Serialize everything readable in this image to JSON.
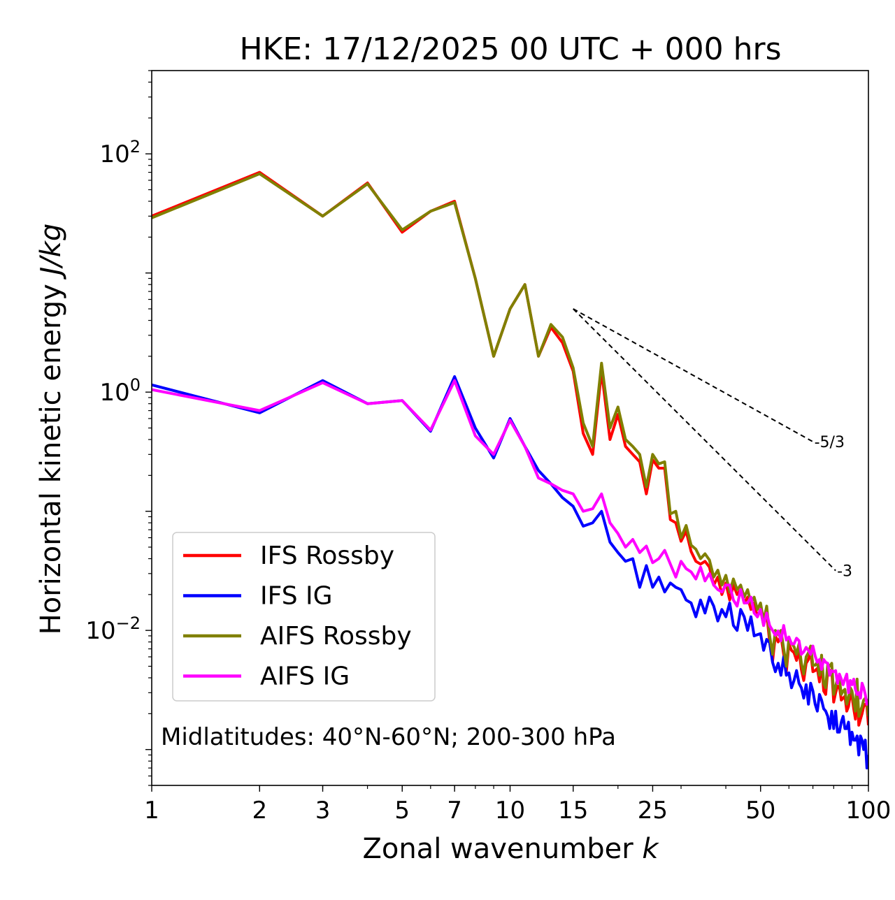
{
  "chart_data": {
    "type": "line",
    "title": "HKE: 17/12/2025 00 UTC + 000 hrs",
    "xlabel": "Zonal wavenumber",
    "xlabel_italic": "k",
    "ylabel": "Horizontal kinetic energy",
    "ylabel_italic": "J/kg",
    "xscale": "log",
    "yscale": "log",
    "xlim": [
      1,
      100
    ],
    "ylim": [
      0.0005,
      500
    ],
    "x_ticks": [
      1,
      2,
      3,
      5,
      7,
      10,
      15,
      25,
      50,
      100
    ],
    "x_tick_labels": [
      "1",
      "2",
      "3",
      "5",
      "7",
      "10",
      "15",
      "25",
      "50",
      "100"
    ],
    "y_ticks": [
      {
        "value": 100,
        "base": "10",
        "exp": "2"
      },
      {
        "value": 1,
        "base": "10",
        "exp": "0"
      },
      {
        "value": 0.01,
        "base": "10",
        "exp": "−2"
      }
    ],
    "annotation": "Midlatitudes: 40°N-60°N; 200-300 hPa",
    "legend_position": "lower-left",
    "series": [
      {
        "name": "IFS Rossby",
        "color": "#ff0000",
        "x": [
          1,
          2,
          3,
          4,
          5,
          6,
          7,
          8,
          9,
          10,
          11,
          12,
          13,
          14,
          15,
          16,
          17,
          18,
          19,
          20,
          21,
          22,
          23,
          24,
          25,
          26,
          27,
          28,
          29,
          30,
          31,
          32,
          33,
          34,
          35,
          36,
          37,
          38,
          39,
          40,
          41,
          42,
          43,
          44,
          45,
          46,
          47,
          48,
          49,
          50,
          51,
          52,
          53,
          54,
          55,
          56,
          57,
          58,
          59,
          60,
          61,
          62,
          63,
          64,
          65,
          66,
          67,
          68,
          69,
          70,
          71,
          72,
          73,
          74,
          75,
          76,
          77,
          78,
          79,
          80,
          81,
          82,
          83,
          84,
          85,
          86,
          87,
          88,
          89,
          90,
          91,
          92,
          93,
          94,
          95,
          96,
          97,
          98,
          99,
          100
        ],
        "y": [
          30,
          70,
          30,
          57,
          22,
          33,
          40,
          9,
          2,
          5,
          8,
          2,
          3.5,
          2.6,
          1.5,
          0.45,
          0.3,
          1.5,
          0.4,
          0.65,
          0.35,
          0.3,
          0.26,
          0.14,
          0.27,
          0.23,
          0.23,
          0.085,
          0.08,
          0.056,
          0.068,
          0.046,
          0.038,
          0.036,
          0.038,
          0.034,
          0.024,
          0.028,
          0.02,
          0.025,
          0.018,
          0.024,
          0.02,
          0.022,
          0.017,
          0.019,
          0.015,
          0.017,
          0.013,
          0.015,
          0.011,
          0.014,
          0.008,
          0.0055,
          0.009,
          0.008,
          0.009,
          0.0063,
          0.0045,
          0.0077,
          0.0068,
          0.0065,
          0.0056,
          0.0068,
          0.0047,
          0.0038,
          0.0053,
          0.0057,
          0.0066,
          0.0045,
          0.0046,
          0.0048,
          0.0037,
          0.0055,
          0.0031,
          0.0029,
          0.0046,
          0.0044,
          0.0047,
          0.0025,
          0.003,
          0.0034,
          0.0034,
          0.0026,
          0.0027,
          0.0028,
          0.0021,
          0.0023,
          0.0029,
          0.0028,
          0.0022,
          0.0018,
          0.0034,
          0.0016,
          0.0018,
          0.002,
          0.0023,
          0.0024,
          0.0023,
          0.0016
        ]
      },
      {
        "name": "IFS IG",
        "color": "#0000ff",
        "x": [
          1,
          2,
          3,
          4,
          5,
          6,
          7,
          8,
          9,
          10,
          11,
          12,
          13,
          14,
          15,
          16,
          17,
          18,
          19,
          20,
          21,
          22,
          23,
          24,
          25,
          26,
          27,
          28,
          29,
          30,
          31,
          32,
          33,
          34,
          35,
          36,
          37,
          38,
          39,
          40,
          41,
          42,
          43,
          44,
          45,
          46,
          47,
          48,
          49,
          50,
          51,
          52,
          53,
          54,
          55,
          56,
          57,
          58,
          59,
          60,
          61,
          62,
          63,
          64,
          65,
          66,
          67,
          68,
          69,
          70,
          71,
          72,
          73,
          74,
          75,
          76,
          77,
          78,
          79,
          80,
          81,
          82,
          83,
          84,
          85,
          86,
          87,
          88,
          89,
          90,
          91,
          92,
          93,
          94,
          95,
          96,
          97,
          98,
          99,
          100
        ],
        "y": [
          1.15,
          0.67,
          1.25,
          0.8,
          0.85,
          0.47,
          1.35,
          0.5,
          0.28,
          0.6,
          0.35,
          0.22,
          0.17,
          0.13,
          0.11,
          0.075,
          0.08,
          0.1,
          0.055,
          0.045,
          0.038,
          0.04,
          0.023,
          0.035,
          0.023,
          0.028,
          0.021,
          0.025,
          0.023,
          0.022,
          0.018,
          0.017,
          0.013,
          0.018,
          0.014,
          0.019,
          0.016,
          0.012,
          0.015,
          0.013,
          0.017,
          0.011,
          0.01,
          0.015,
          0.013,
          0.01,
          0.013,
          0.009,
          0.0092,
          0.0094,
          0.0068,
          0.0084,
          0.0079,
          0.0054,
          0.0045,
          0.0053,
          0.0042,
          0.006,
          0.0042,
          0.0044,
          0.0033,
          0.0038,
          0.0046,
          0.0036,
          0.0033,
          0.0027,
          0.0035,
          0.0024,
          0.0036,
          0.0031,
          0.0024,
          0.0021,
          0.0029,
          0.0026,
          0.0022,
          0.0021,
          0.0019,
          0.0015,
          0.0021,
          0.0015,
          0.0021,
          0.0014,
          0.0014,
          0.0017,
          0.0019,
          0.0015,
          0.0015,
          0.0017,
          0.0011,
          0.0014,
          0.0012,
          0.0012,
          0.0013,
          0.0009,
          0.0013,
          0.0012,
          0.001,
          0.0012,
          0.0007,
          0.0009
        ]
      },
      {
        "name": "AIFS Rossby",
        "color": "#808000",
        "x": [
          1,
          2,
          3,
          4,
          5,
          6,
          7,
          8,
          9,
          10,
          11,
          12,
          13,
          14,
          15,
          16,
          17,
          18,
          19,
          20,
          21,
          22,
          23,
          24,
          25,
          26,
          27,
          28,
          29,
          30,
          31,
          32,
          33,
          34,
          35,
          36,
          37,
          38,
          39,
          40,
          41,
          42,
          43,
          44,
          45,
          46,
          47,
          48,
          49,
          50,
          51,
          52,
          53,
          54,
          55,
          56,
          57,
          58,
          59,
          60,
          61,
          62,
          63,
          64,
          65,
          66,
          67,
          68,
          69,
          70,
          71,
          72,
          73,
          74,
          75,
          76,
          77,
          78,
          79,
          80,
          81,
          82,
          83,
          84,
          85,
          86,
          87,
          88,
          89,
          90,
          91,
          92,
          93,
          94,
          95,
          96,
          97,
          98,
          99,
          100
        ],
        "y": [
          29,
          68,
          30,
          56,
          23,
          33,
          39,
          9,
          2,
          5,
          8,
          2,
          3.7,
          2.9,
          1.6,
          0.55,
          0.35,
          1.75,
          0.5,
          0.75,
          0.4,
          0.35,
          0.3,
          0.16,
          0.3,
          0.25,
          0.26,
          0.095,
          0.1,
          0.06,
          0.076,
          0.052,
          0.048,
          0.04,
          0.044,
          0.039,
          0.028,
          0.032,
          0.024,
          0.029,
          0.021,
          0.027,
          0.022,
          0.024,
          0.019,
          0.022,
          0.017,
          0.019,
          0.015,
          0.017,
          0.012,
          0.016,
          0.009,
          0.0063,
          0.01,
          0.0092,
          0.01,
          0.007,
          0.005,
          0.0086,
          0.0078,
          0.0073,
          0.0063,
          0.0077,
          0.0053,
          0.0043,
          0.006,
          0.0065,
          0.0074,
          0.0051,
          0.0051,
          0.0054,
          0.0042,
          0.0062,
          0.0036,
          0.0033,
          0.0052,
          0.005,
          0.0053,
          0.0029,
          0.0034,
          0.0039,
          0.0039,
          0.0029,
          0.0031,
          0.0032,
          0.0024,
          0.0027,
          0.0033,
          0.0031,
          0.0025,
          0.0021,
          0.0039,
          0.0019,
          0.0021,
          0.0023,
          0.0026,
          0.0027,
          0.0026,
          0.0019
        ]
      },
      {
        "name": "AIFS IG",
        "color": "#ff00ff",
        "x": [
          1,
          2,
          3,
          4,
          5,
          6,
          7,
          8,
          9,
          10,
          11,
          12,
          13,
          14,
          15,
          16,
          17,
          18,
          19,
          20,
          21,
          22,
          23,
          24,
          25,
          26,
          27,
          28,
          29,
          30,
          31,
          32,
          33,
          34,
          35,
          36,
          37,
          38,
          39,
          40,
          41,
          42,
          43,
          44,
          45,
          46,
          47,
          48,
          49,
          50,
          51,
          52,
          53,
          54,
          55,
          56,
          57,
          58,
          59,
          60,
          61,
          62,
          63,
          64,
          65,
          66,
          67,
          68,
          69,
          70,
          71,
          72,
          73,
          74,
          75,
          76,
          77,
          78,
          79,
          80,
          81,
          82,
          83,
          84,
          85,
          86,
          87,
          88,
          89,
          90,
          91,
          92,
          93,
          94,
          95,
          96,
          97,
          98,
          99,
          100
        ],
        "y": [
          1.05,
          0.7,
          1.2,
          0.8,
          0.85,
          0.48,
          1.25,
          0.43,
          0.3,
          0.58,
          0.35,
          0.19,
          0.17,
          0.15,
          0.14,
          0.1,
          0.105,
          0.14,
          0.08,
          0.065,
          0.05,
          0.058,
          0.045,
          0.051,
          0.037,
          0.04,
          0.047,
          0.036,
          0.028,
          0.038,
          0.033,
          0.031,
          0.027,
          0.034,
          0.026,
          0.03,
          0.024,
          0.022,
          0.021,
          0.024,
          0.024,
          0.018,
          0.016,
          0.022,
          0.017,
          0.017,
          0.019,
          0.014,
          0.013,
          0.015,
          0.011,
          0.014,
          0.011,
          0.01,
          0.0091,
          0.0099,
          0.0082,
          0.011,
          0.0083,
          0.0088,
          0.0077,
          0.0077,
          0.0086,
          0.0082,
          0.0063,
          0.0066,
          0.0072,
          0.0068,
          0.0063,
          0.0074,
          0.0061,
          0.0054,
          0.0057,
          0.0047,
          0.0057,
          0.0054,
          0.0053,
          0.0042,
          0.0046,
          0.0045,
          0.0046,
          0.0036,
          0.0043,
          0.0039,
          0.0035,
          0.0039,
          0.0043,
          0.003,
          0.0038,
          0.0035,
          0.0039,
          0.0032,
          0.0029,
          0.003,
          0.0027,
          0.0036,
          0.0033,
          0.0029,
          0.0024,
          0.0024
        ]
      }
    ],
    "reference_lines": [
      {
        "label": "-5/3",
        "slope": -1.6667,
        "x_start": 15,
        "x_end": 70,
        "y_start": 5
      },
      {
        "label": "-3",
        "slope": -3,
        "x_start": 15,
        "x_end": 81,
        "y_start": 5
      }
    ]
  }
}
